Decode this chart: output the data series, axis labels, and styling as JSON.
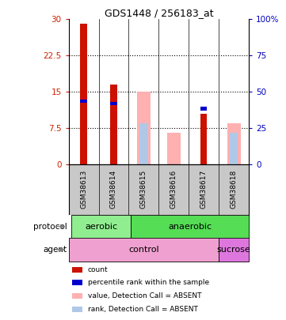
{
  "title": "GDS1448 / 256183_at",
  "samples": [
    "GSM38613",
    "GSM38614",
    "GSM38615",
    "GSM38616",
    "GSM38617",
    "GSM38618"
  ],
  "bar_data": {
    "count_red": [
      29.0,
      16.5,
      0,
      0,
      10.5,
      0
    ],
    "rank_blue": [
      13.0,
      12.5,
      0,
      0,
      11.5,
      0
    ],
    "value_pink": [
      0,
      0,
      15.0,
      6.5,
      0,
      8.5
    ],
    "rank_lightblue": [
      0,
      0,
      8.5,
      0,
      0,
      6.5
    ]
  },
  "ylim_left": [
    0,
    30
  ],
  "ylim_right": [
    0,
    100
  ],
  "yticks_left": [
    0,
    7.5,
    15,
    22.5,
    30
  ],
  "yticks_right": [
    0,
    25,
    50,
    75,
    100
  ],
  "ytick_labels_left": [
    "0",
    "7.5",
    "15",
    "22.5",
    "30"
  ],
  "ytick_labels_right": [
    "0",
    "25",
    "50",
    "75",
    "100%"
  ],
  "color_red": "#CC1100",
  "color_blue": "#0000CC",
  "color_pink": "#FFB0B0",
  "color_lightblue": "#B0C8E8",
  "background_color": "#ffffff",
  "tick_label_area_color": "#C8C8C8",
  "legend_items": [
    {
      "color": "#CC1100",
      "label": "count"
    },
    {
      "color": "#0000CC",
      "label": "percentile rank within the sample"
    },
    {
      "color": "#FFB0B0",
      "label": "value, Detection Call = ABSENT"
    },
    {
      "color": "#B0C8E8",
      "label": "rank, Detection Call = ABSENT"
    }
  ]
}
